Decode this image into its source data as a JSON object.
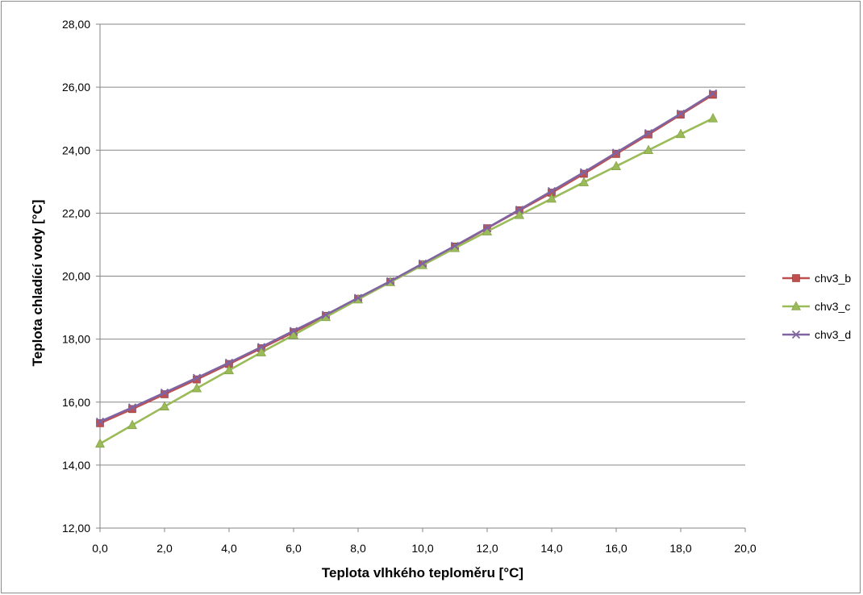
{
  "chart_data": {
    "type": "line",
    "title": "",
    "xlabel": "Teplota vlhkého teploměru [°C]",
    "ylabel": "Teplota chladící vody [°C]",
    "xlim": [
      0,
      20
    ],
    "ylim": [
      12,
      28
    ],
    "x_ticks": [
      0,
      2,
      4,
      6,
      8,
      10,
      12,
      14,
      16,
      18,
      20
    ],
    "x_tick_labels": [
      "0,0",
      "2,0",
      "4,0",
      "6,0",
      "8,0",
      "10,0",
      "12,0",
      "14,0",
      "16,0",
      "18,0",
      "20,0"
    ],
    "y_ticks": [
      12,
      14,
      16,
      18,
      20,
      22,
      24,
      26,
      28
    ],
    "y_tick_labels": [
      "12,00",
      "14,00",
      "16,00",
      "18,00",
      "20,00",
      "22,00",
      "24,00",
      "26,00",
      "28,00"
    ],
    "grid": "horizontal",
    "legend_position": "right",
    "x": [
      0,
      1,
      2,
      3,
      4,
      5,
      6,
      7,
      8,
      9,
      10,
      11,
      12,
      13,
      14,
      15,
      16,
      17,
      18,
      19
    ],
    "series": [
      {
        "name": "chv3_b",
        "color": "#c0504d",
        "marker": "square",
        "values": [
          15.33,
          15.78,
          16.25,
          16.72,
          17.21,
          17.71,
          18.22,
          18.74,
          19.28,
          19.82,
          20.37,
          20.94,
          21.52,
          22.09,
          22.65,
          23.25,
          23.88,
          24.5,
          25.13,
          25.76
        ]
      },
      {
        "name": "chv3_c",
        "color": "#9bbb59",
        "marker": "triangle",
        "values": [
          14.68,
          15.27,
          15.86,
          16.44,
          17.01,
          17.58,
          18.13,
          18.7,
          19.26,
          19.81,
          20.35,
          20.89,
          21.42,
          21.94,
          22.46,
          22.98,
          23.49,
          24.0,
          24.51,
          25.01
        ]
      },
      {
        "name": "chv3_d",
        "color": "#8064a2",
        "marker": "x",
        "values": [
          15.38,
          15.83,
          16.3,
          16.77,
          17.25,
          17.75,
          18.26,
          18.77,
          19.31,
          19.84,
          20.4,
          20.96,
          21.53,
          22.11,
          22.7,
          23.3,
          23.92,
          24.54,
          25.16,
          25.8
        ]
      }
    ]
  }
}
